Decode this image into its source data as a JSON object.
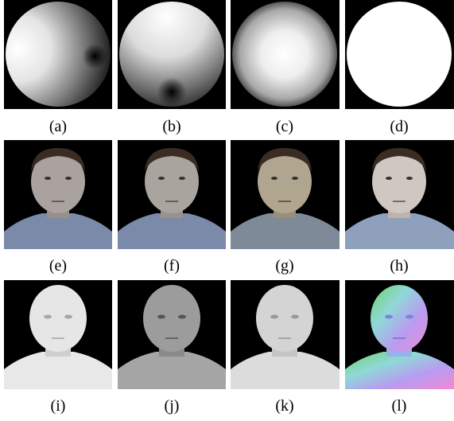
{
  "rows": [
    {
      "panels": [
        {
          "caption": "(a)",
          "kind": "sphere-shading-a"
        },
        {
          "caption": "(b)",
          "kind": "sphere-shading-b"
        },
        {
          "caption": "(c)",
          "kind": "sphere-shading-c"
        },
        {
          "caption": "(d)",
          "kind": "sphere-mask-d"
        }
      ]
    },
    {
      "panels": [
        {
          "caption": "(e)",
          "kind": "face-photo-e"
        },
        {
          "caption": "(f)",
          "kind": "face-photo-f"
        },
        {
          "caption": "(g)",
          "kind": "face-photo-g"
        },
        {
          "caption": "(h)",
          "kind": "face-photo-h"
        }
      ]
    },
    {
      "panels": [
        {
          "caption": "(i)",
          "kind": "face-shading-i"
        },
        {
          "caption": "(j)",
          "kind": "face-shading-j"
        },
        {
          "caption": "(k)",
          "kind": "face-shading-k"
        },
        {
          "caption": "(l)",
          "kind": "face-normal-map-l"
        }
      ]
    }
  ],
  "colors": {
    "background": "#000000",
    "photo_tints": [
      "#a9a29f",
      "#aaa49f",
      "#b0a58e",
      "#cfc7c0"
    ],
    "shirt": "#7a8aa8",
    "hair": "#3a2c22",
    "gray_face": [
      "#e6e6e6",
      "#9c9c9c",
      "#d4d4d4"
    ]
  }
}
